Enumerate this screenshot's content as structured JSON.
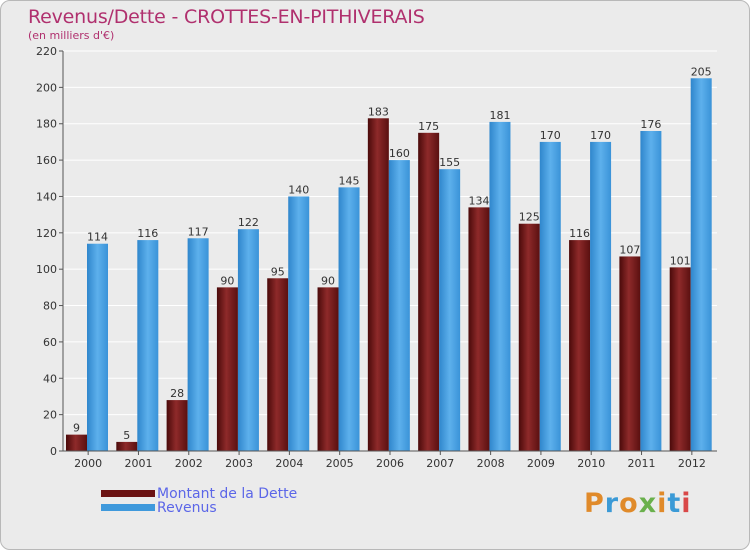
{
  "title": "Revenus/Dette - CROTTES-EN-PITHIVERAIS",
  "subtitle": "(en milliers d'€)",
  "logo": {
    "text": "Proxiti",
    "colors": [
      "#e08a2a",
      "#3b9ad6",
      "#e08a2a",
      "#6ab04c",
      "#e08a2a",
      "#3b9ad6",
      "#d94848"
    ]
  },
  "colors": {
    "dette": "#7a1a1a",
    "revenus": "#3f99dc",
    "title": "#b0306e",
    "legend_text": "#5b66e8",
    "axis": "#555555",
    "grid": "#ffffff"
  },
  "legend": [
    {
      "label": "Montant de la Dette",
      "color": "#7a1a1a"
    },
    {
      "label": "Revenus",
      "color": "#3f99dc"
    }
  ],
  "chart_data": {
    "type": "bar",
    "title": "Revenus/Dette - CROTTES-EN-PITHIVERAIS",
    "subtitle": "(en milliers d'€)",
    "categories": [
      "2000",
      "2001",
      "2002",
      "2003",
      "2004",
      "2005",
      "2006",
      "2007",
      "2008",
      "2009",
      "2010",
      "2011",
      "2012"
    ],
    "series": [
      {
        "name": "Montant de la Dette",
        "values": [
          9,
          5,
          28,
          90,
          95,
          90,
          183,
          175,
          134,
          125,
          116,
          107,
          101
        ]
      },
      {
        "name": "Revenus",
        "values": [
          114,
          116,
          117,
          122,
          140,
          145,
          160,
          155,
          181,
          170,
          170,
          176,
          205
        ]
      }
    ],
    "ylim": [
      0,
      220
    ],
    "yticks": [
      0,
      20,
      40,
      60,
      80,
      100,
      120,
      140,
      160,
      180,
      200,
      220
    ],
    "grid": true,
    "legend_position": "bottom-left"
  }
}
